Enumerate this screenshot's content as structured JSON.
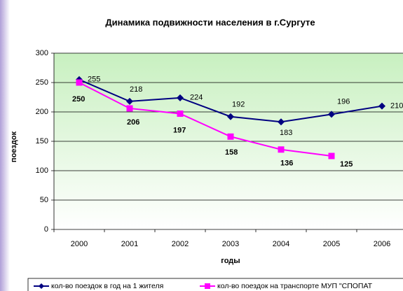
{
  "chart_data": {
    "type": "line",
    "title": "Динамика подвижности населения в г.Сургуте",
    "x_label": "годы",
    "y_label": "поездок",
    "categories": [
      "2000",
      "2001",
      "2002",
      "2003",
      "2004",
      "2005",
      "2006"
    ],
    "series": [
      {
        "name": "кол-во поездок в год на 1 жителя",
        "color": "#000080",
        "values": [
          255,
          218,
          224,
          192,
          183,
          196,
          210
        ]
      },
      {
        "name": "кол-во поездок на транспорте МУП \"СПОПАТ",
        "color": "#ff00ff",
        "values": [
          250,
          206,
          197,
          158,
          136,
          125,
          null
        ]
      }
    ],
    "ylim": [
      0,
      300
    ],
    "yticks": [
      0,
      50,
      100,
      150,
      200,
      250,
      300
    ],
    "grid": true
  }
}
